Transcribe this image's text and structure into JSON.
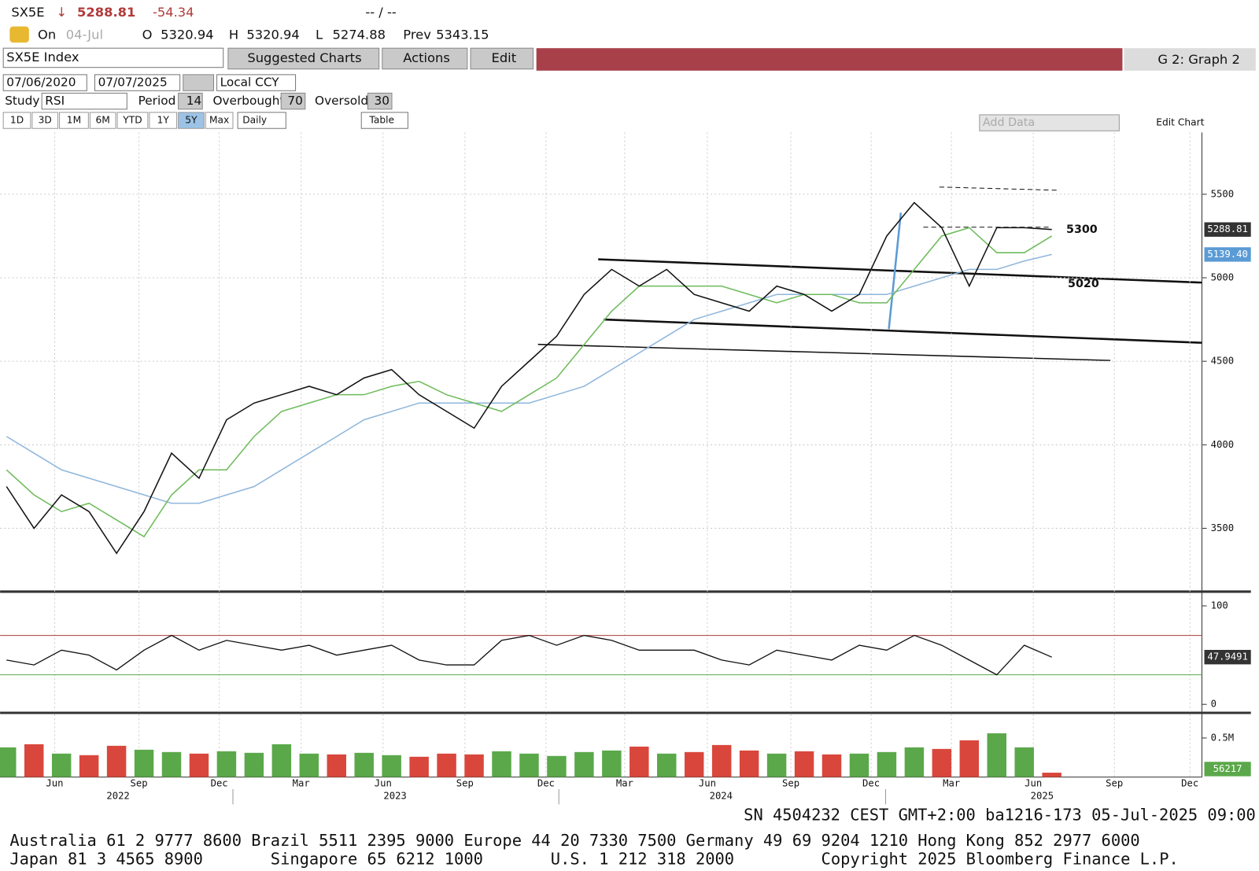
{
  "header": {
    "ticker": "SX5E",
    "direction": "↓",
    "last": "5288.81",
    "change": "-54.34",
    "bid_ask": "-- / --"
  },
  "quote": {
    "on": "On",
    "date": "04-Jul",
    "open_label": "O",
    "open": "5320.94",
    "high_label": "H",
    "high": "5320.94",
    "low_label": "L",
    "low": "5274.88",
    "prev_label": "Prev",
    "prev": "5343.15"
  },
  "toolbar": {
    "security": "SX5E Index",
    "suggested": "Suggested Charts",
    "actions": "Actions",
    "edit": "Edit",
    "graph": "G 2: Graph 2"
  },
  "controls": {
    "start": "07/06/2020",
    "end": "07/07/2025",
    "currency": "Local CCY",
    "study_label": "Study",
    "study": "RSI",
    "period_label": "Period",
    "period": 14,
    "overbought_label": "Overbought",
    "overbought": 70,
    "oversold_label": "Oversold",
    "oversold": 30,
    "ranges": [
      "1D",
      "3D",
      "1M",
      "6M",
      "YTD",
      "1Y",
      "5Y",
      "Max"
    ],
    "frequency": "Daily",
    "table": "Table",
    "add_data": "Add Data",
    "edit_chart": "Edit Chart"
  },
  "time_axis": {
    "months": [
      "Jun",
      "Sep",
      "Dec",
      "Mar",
      "Jun",
      "Sep",
      "Dec",
      "Mar",
      "Jun",
      "Sep",
      "Dec",
      "Mar",
      "Jun",
      "Sep",
      "Dec"
    ],
    "years": [
      "2022",
      "2023",
      "2024",
      "2025"
    ]
  },
  "chart_data": [
    {
      "type": "line",
      "ylim": [
        3140,
        5870
      ],
      "yticks": [
        3500,
        4000,
        4500,
        5000,
        5500
      ],
      "grid": true,
      "annotations": [
        "5300",
        "5020"
      ],
      "series": [
        {
          "color": "#111111",
          "tag": "5288.81",
          "values": [
            3750,
            3500,
            3700,
            3600,
            3350,
            3600,
            3950,
            3800,
            4150,
            4250,
            4300,
            4350,
            4300,
            4400,
            4450,
            4300,
            4200,
            4100,
            4350,
            4500,
            4650,
            4900,
            5050,
            4950,
            5050,
            4900,
            4850,
            4800,
            4950,
            4900,
            4800,
            4900,
            5250,
            5450,
            5300,
            4950,
            5300,
            5300,
            5288.81
          ]
        },
        {
          "color": "#6dbb5a",
          "values": [
            3850,
            3700,
            3600,
            3650,
            3550,
            3450,
            3700,
            3850,
            3850,
            4050,
            4200,
            4250,
            4300,
            4300,
            4350,
            4380,
            4300,
            4250,
            4200,
            4300,
            4400,
            4600,
            4800,
            4950,
            4950,
            4950,
            4950,
            4900,
            4850,
            4900,
            4900,
            4850,
            4850,
            5050,
            5250,
            5300,
            5150,
            5150,
            5250
          ]
        },
        {
          "color": "#8fb6dc",
          "tag": "5139.40",
          "values": [
            4050,
            3950,
            3850,
            3800,
            3750,
            3700,
            3650,
            3650,
            3700,
            3750,
            3850,
            3950,
            4050,
            4150,
            4200,
            4250,
            4250,
            4250,
            4250,
            4250,
            4300,
            4350,
            4450,
            4550,
            4650,
            4750,
            4800,
            4850,
            4900,
            4900,
            4900,
            4900,
            4900,
            4950,
            5000,
            5050,
            5050,
            5100,
            5139.4
          ]
        }
      ]
    },
    {
      "type": "line",
      "ylim": [
        -7,
        112
      ],
      "yticks": [
        0,
        100
      ],
      "color": "#111111",
      "tag": "47.9491",
      "values": [
        45,
        40,
        55,
        50,
        35,
        55,
        70,
        55,
        65,
        60,
        55,
        60,
        50,
        55,
        60,
        45,
        40,
        40,
        65,
        70,
        60,
        70,
        65,
        55,
        55,
        55,
        45,
        40,
        55,
        50,
        45,
        60,
        55,
        70,
        60,
        45,
        30,
        60,
        47.9491
      ]
    },
    {
      "type": "bar",
      "ylim": [
        0,
        770000
      ],
      "yticks": [
        {
          "value": 500000,
          "label": "0.5M"
        }
      ],
      "up_color": "#5aa84a",
      "down_color": "#d9473c",
      "tag": "56217",
      "values": [
        380000,
        420000,
        300000,
        280000,
        400000,
        350000,
        320000,
        300000,
        330000,
        310000,
        420000,
        300000,
        290000,
        310000,
        280000,
        260000,
        300000,
        290000,
        330000,
        300000,
        270000,
        320000,
        340000,
        390000,
        300000,
        320000,
        410000,
        340000,
        300000,
        330000,
        290000,
        300000,
        320000,
        380000,
        360000,
        470000,
        560000,
        380000,
        56217
      ]
    }
  ],
  "footer": {
    "session": "SN 4504232 CEST GMT+2:00 ba1216-173 05-Jul-2025 09:00",
    "line1": "Australia 61 2 9777 8600 Brazil 5511 2395 9000 Europe 44 20 7330 7500 Germany 49 69 9204 1210 Hong Kong 852 2977 6000",
    "line2": "Japan 81 3 4565 8900       Singapore 65 6212 1000       U.S. 1 212 318 2000         Copyright 2025 Bloomberg Finance L.P."
  }
}
